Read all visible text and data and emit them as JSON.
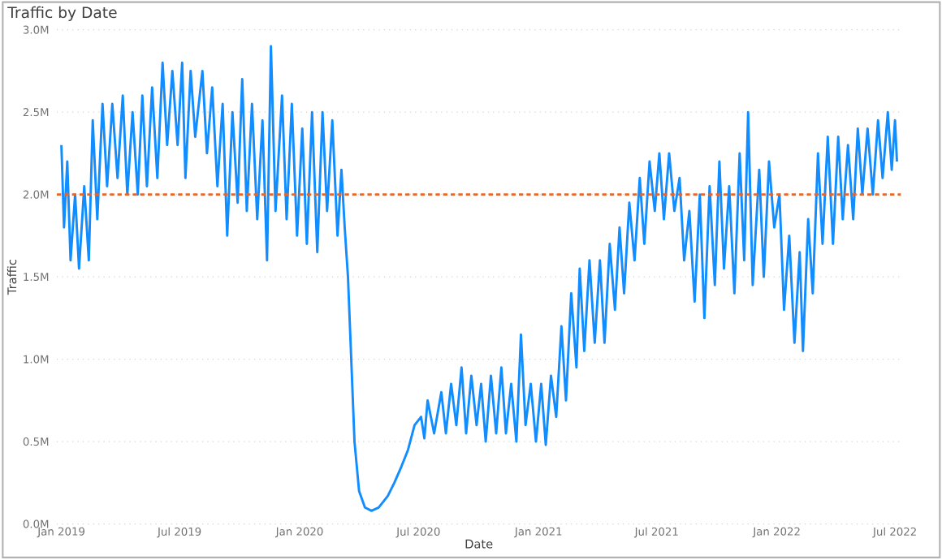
{
  "chart_data": {
    "type": "line",
    "title": "Traffic by Date",
    "xlabel": "Date",
    "ylabel": "Traffic",
    "xlim": [
      "2018-12-25",
      "2022-07-10"
    ],
    "xticks": [
      {
        "value": "2019-01-01",
        "label": "Jan 2019"
      },
      {
        "value": "2019-07-01",
        "label": "Jul 2019"
      },
      {
        "value": "2020-01-01",
        "label": "Jan 2020"
      },
      {
        "value": "2020-07-01",
        "label": "Jul 2020"
      },
      {
        "value": "2021-01-01",
        "label": "Jan 2021"
      },
      {
        "value": "2021-07-01",
        "label": "Jul 2021"
      },
      {
        "value": "2022-01-01",
        "label": "Jan 2022"
      },
      {
        "value": "2022-07-01",
        "label": "Jul 2022"
      }
    ],
    "ylim": [
      0,
      3.0
    ],
    "yticks": [
      {
        "value": 0,
        "label": "0.0M"
      },
      {
        "value": 0.5,
        "label": "0.5M"
      },
      {
        "value": 1.0,
        "label": "1.0M"
      },
      {
        "value": 1.5,
        "label": "1.5M"
      },
      {
        "value": 2.0,
        "label": "2.0M"
      },
      {
        "value": 2.5,
        "label": "2.5M"
      },
      {
        "value": 3.0,
        "label": "3.0M"
      }
    ],
    "grid": "y",
    "ref_lines": [
      {
        "axis": "y",
        "value": 2.0,
        "color": "#e8662a",
        "line_style": "dashed"
      }
    ],
    "series": [
      {
        "color": "#118dff",
        "x": [
          "2019-01-01",
          "2019-01-05",
          "2019-01-10",
          "2019-01-15",
          "2019-01-22",
          "2019-01-28",
          "2019-02-05",
          "2019-02-12",
          "2019-02-18",
          "2019-02-25",
          "2019-03-05",
          "2019-03-12",
          "2019-03-20",
          "2019-03-28",
          "2019-04-05",
          "2019-04-12",
          "2019-04-20",
          "2019-04-28",
          "2019-05-05",
          "2019-05-12",
          "2019-05-20",
          "2019-05-28",
          "2019-06-05",
          "2019-06-12",
          "2019-06-20",
          "2019-06-28",
          "2019-07-05",
          "2019-07-10",
          "2019-07-18",
          "2019-07-25",
          "2019-08-05",
          "2019-08-12",
          "2019-08-20",
          "2019-08-28",
          "2019-09-05",
          "2019-09-12",
          "2019-09-20",
          "2019-09-28",
          "2019-10-05",
          "2019-10-12",
          "2019-10-20",
          "2019-10-28",
          "2019-11-05",
          "2019-11-12",
          "2019-11-18",
          "2019-11-25",
          "2019-12-05",
          "2019-12-12",
          "2019-12-20",
          "2019-12-28",
          "2020-01-05",
          "2020-01-12",
          "2020-01-20",
          "2020-01-28",
          "2020-02-05",
          "2020-02-12",
          "2020-02-20",
          "2020-02-28",
          "2020-03-05",
          "2020-03-10",
          "2020-03-15",
          "2020-03-20",
          "2020-03-25",
          "2020-04-01",
          "2020-04-10",
          "2020-04-20",
          "2020-05-01",
          "2020-05-15",
          "2020-05-25",
          "2020-06-05",
          "2020-06-15",
          "2020-06-25",
          "2020-07-05",
          "2020-07-10",
          "2020-07-15",
          "2020-07-25",
          "2020-08-05",
          "2020-08-12",
          "2020-08-20",
          "2020-08-28",
          "2020-09-05",
          "2020-09-12",
          "2020-09-20",
          "2020-09-28",
          "2020-10-05",
          "2020-10-12",
          "2020-10-20",
          "2020-10-28",
          "2020-11-05",
          "2020-11-12",
          "2020-11-20",
          "2020-11-28",
          "2020-12-05",
          "2020-12-12",
          "2020-12-20",
          "2020-12-28",
          "2021-01-05",
          "2021-01-12",
          "2021-01-20",
          "2021-01-28",
          "2021-02-05",
          "2021-02-12",
          "2021-02-20",
          "2021-02-28",
          "2021-03-05",
          "2021-03-12",
          "2021-03-20",
          "2021-03-28",
          "2021-04-05",
          "2021-04-12",
          "2021-04-20",
          "2021-04-28",
          "2021-05-05",
          "2021-05-12",
          "2021-05-20",
          "2021-05-28",
          "2021-06-05",
          "2021-06-12",
          "2021-06-20",
          "2021-06-28",
          "2021-07-05",
          "2021-07-12",
          "2021-07-20",
          "2021-07-28",
          "2021-08-05",
          "2021-08-12",
          "2021-08-20",
          "2021-08-28",
          "2021-09-05",
          "2021-09-12",
          "2021-09-20",
          "2021-09-28",
          "2021-10-05",
          "2021-10-12",
          "2021-10-20",
          "2021-10-28",
          "2021-11-05",
          "2021-11-12",
          "2021-11-18",
          "2021-11-25",
          "2021-12-05",
          "2021-12-12",
          "2021-12-20",
          "2021-12-28",
          "2022-01-05",
          "2022-01-12",
          "2022-01-20",
          "2022-01-28",
          "2022-02-05",
          "2022-02-10",
          "2022-02-18",
          "2022-02-25",
          "2022-03-05",
          "2022-03-12",
          "2022-03-20",
          "2022-03-28",
          "2022-04-05",
          "2022-04-12",
          "2022-04-20",
          "2022-04-28",
          "2022-05-05",
          "2022-05-12",
          "2022-05-20",
          "2022-05-28",
          "2022-06-05",
          "2022-06-12",
          "2022-06-20",
          "2022-06-26",
          "2022-07-01",
          "2022-07-04"
        ],
        "values": [
          2.3,
          1.8,
          2.2,
          1.6,
          2.0,
          1.55,
          2.05,
          1.6,
          2.45,
          1.85,
          2.55,
          2.05,
          2.55,
          2.1,
          2.6,
          2.0,
          2.5,
          2.0,
          2.6,
          2.05,
          2.65,
          2.1,
          2.8,
          2.3,
          2.75,
          2.3,
          2.8,
          2.1,
          2.75,
          2.35,
          2.75,
          2.25,
          2.65,
          2.05,
          2.55,
          1.75,
          2.5,
          1.95,
          2.7,
          1.9,
          2.55,
          1.85,
          2.45,
          1.6,
          2.9,
          1.9,
          2.6,
          1.85,
          2.55,
          1.75,
          2.4,
          1.7,
          2.5,
          1.65,
          2.5,
          1.9,
          2.45,
          1.75,
          2.15,
          1.8,
          1.5,
          1.0,
          0.5,
          0.2,
          0.1,
          0.08,
          0.1,
          0.17,
          0.25,
          0.35,
          0.45,
          0.6,
          0.65,
          0.52,
          0.75,
          0.55,
          0.8,
          0.55,
          0.85,
          0.6,
          0.95,
          0.55,
          0.9,
          0.6,
          0.85,
          0.5,
          0.9,
          0.55,
          0.95,
          0.55,
          0.85,
          0.5,
          1.15,
          0.6,
          0.85,
          0.5,
          0.85,
          0.48,
          0.9,
          0.65,
          1.2,
          0.75,
          1.4,
          0.95,
          1.55,
          1.05,
          1.6,
          1.1,
          1.6,
          1.1,
          1.7,
          1.3,
          1.8,
          1.4,
          1.95,
          1.6,
          2.1,
          1.7,
          2.2,
          1.9,
          2.25,
          1.85,
          2.25,
          1.9,
          2.1,
          1.6,
          1.9,
          1.35,
          2.0,
          1.25,
          2.05,
          1.45,
          2.2,
          1.55,
          2.05,
          1.4,
          2.25,
          1.6,
          2.5,
          1.45,
          2.15,
          1.5,
          2.2,
          1.8,
          2.0,
          1.3,
          1.75,
          1.1,
          1.65,
          1.05,
          1.85,
          1.4,
          2.25,
          1.7,
          2.35,
          1.7,
          2.35,
          1.85,
          2.3,
          1.85,
          2.4,
          2.0,
          2.4,
          2.0,
          2.45,
          2.1,
          2.5,
          2.15,
          2.45,
          2.2
        ]
      }
    ]
  }
}
